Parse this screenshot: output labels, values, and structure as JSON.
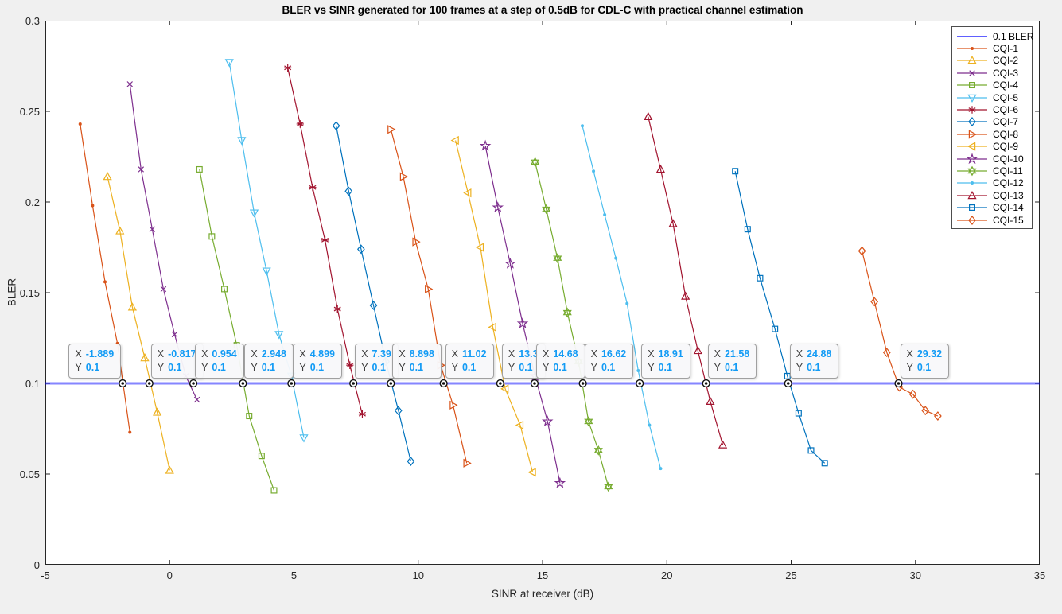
{
  "figure": {
    "background": "#f0f0f0",
    "plot_background": "#ffffff",
    "axis_color": "#262626"
  },
  "datatip": {
    "x_label": "X",
    "y_label": "Y",
    "value_color": "#129bf5",
    "key_color": "#3c3c3c"
  },
  "chart_data": {
    "type": "line",
    "title": "BLER vs SINR generated for 100 frames at a step of 0.5dB for CDL-C with practical channel estimation",
    "xlabel": "SINR at receiver (dB)",
    "ylabel": "BLER",
    "xlim": [
      -5,
      35
    ],
    "ylim": [
      0,
      0.3
    ],
    "xtick_labels": [
      "-5",
      "0",
      "5",
      "10",
      "15",
      "20",
      "25",
      "30",
      "35"
    ],
    "xtick_values": [
      -5,
      0,
      5,
      10,
      15,
      20,
      25,
      30,
      35
    ],
    "ytick_labels": [
      "0",
      "0.05",
      "0.1",
      "0.15",
      "0.2",
      "0.25",
      "0.3"
    ],
    "ytick_values": [
      0,
      0.05,
      0.1,
      0.15,
      0.2,
      0.25,
      0.3
    ],
    "grid": false,
    "legend_position": "top-right",
    "reference_line": {
      "label": "0.1 BLER",
      "y": 0.1,
      "color": "#0000FF"
    },
    "series": [
      {
        "name": "CQI-1",
        "color": "#D95319",
        "marker": "point",
        "x": [
          -3.6,
          -3.1,
          -2.6,
          -2.1,
          -1.6
        ],
        "y": [
          0.243,
          0.198,
          0.156,
          0.122,
          0.073
        ]
      },
      {
        "name": "CQI-2",
        "color": "#EDB120",
        "marker": "triangle-up",
        "x": [
          -2.5,
          -2.0,
          -1.5,
          -1.0,
          -0.5,
          0.0
        ],
        "y": [
          0.214,
          0.184,
          0.142,
          0.114,
          0.084,
          0.052
        ]
      },
      {
        "name": "CQI-3",
        "color": "#7E2F8E",
        "marker": "x",
        "x": [
          -1.6,
          -1.15,
          -0.7,
          -0.25,
          0.2,
          0.65,
          1.1
        ],
        "y": [
          0.265,
          0.218,
          0.185,
          0.152,
          0.127,
          0.104,
          0.091
        ]
      },
      {
        "name": "CQI-4",
        "color": "#77AC30",
        "marker": "square",
        "x": [
          1.2,
          1.7,
          2.2,
          2.7,
          3.2,
          3.7,
          4.2
        ],
        "y": [
          0.218,
          0.181,
          0.152,
          0.121,
          0.082,
          0.06,
          0.041
        ]
      },
      {
        "name": "CQI-5",
        "color": "#4DBEEE",
        "marker": "triangle-down",
        "x": [
          2.4,
          2.9,
          3.4,
          3.9,
          4.4,
          4.9,
          5.4
        ],
        "y": [
          0.277,
          0.234,
          0.194,
          0.162,
          0.127,
          0.104,
          0.07
        ]
      },
      {
        "name": "CQI-6",
        "color": "#A2142F",
        "marker": "asterisk",
        "x": [
          4.75,
          5.25,
          5.75,
          6.25,
          6.75,
          7.25,
          7.75
        ],
        "y": [
          0.274,
          0.243,
          0.208,
          0.179,
          0.141,
          0.11,
          0.083
        ]
      },
      {
        "name": "CQI-7",
        "color": "#0072BD",
        "marker": "diamond",
        "x": [
          6.7,
          7.2,
          7.7,
          8.2,
          8.7,
          9.2,
          9.7
        ],
        "y": [
          0.242,
          0.206,
          0.174,
          0.143,
          0.112,
          0.085,
          0.057
        ]
      },
      {
        "name": "CQI-8",
        "color": "#D95319",
        "marker": "triangle-right",
        "x": [
          8.9,
          9.4,
          9.9,
          10.4,
          10.9,
          11.4,
          11.95
        ],
        "y": [
          0.24,
          0.214,
          0.178,
          0.152,
          0.11,
          0.088,
          0.056
        ]
      },
      {
        "name": "CQI-9",
        "color": "#EDB120",
        "marker": "triangle-left",
        "x": [
          11.5,
          12.0,
          12.5,
          13.0,
          13.5,
          14.1,
          14.6
        ],
        "y": [
          0.234,
          0.205,
          0.175,
          0.131,
          0.097,
          0.077,
          0.051
        ]
      },
      {
        "name": "CQI-10",
        "color": "#7E2F8E",
        "marker": "pentagram",
        "x": [
          12.7,
          13.2,
          13.7,
          14.2,
          14.7,
          15.2,
          15.7
        ],
        "y": [
          0.231,
          0.197,
          0.166,
          0.133,
          0.104,
          0.079,
          0.045
        ]
      },
      {
        "name": "CQI-11",
        "color": "#77AC30",
        "marker": "hexagram",
        "x": [
          14.7,
          15.15,
          15.6,
          16.0,
          16.45,
          16.85,
          17.25,
          17.65
        ],
        "y": [
          0.222,
          0.196,
          0.169,
          0.139,
          0.112,
          0.079,
          0.063,
          0.043
        ]
      },
      {
        "name": "CQI-12",
        "color": "#4DBEEE",
        "marker": "point",
        "x": [
          16.6,
          17.05,
          17.5,
          17.95,
          18.4,
          18.85,
          19.3,
          19.75
        ],
        "y": [
          0.242,
          0.217,
          0.193,
          0.169,
          0.144,
          0.107,
          0.077,
          0.053
        ]
      },
      {
        "name": "CQI-13",
        "color": "#A2142F",
        "marker": "triangle-up",
        "x": [
          19.25,
          19.75,
          20.25,
          20.75,
          21.25,
          21.75,
          22.25
        ],
        "y": [
          0.247,
          0.218,
          0.188,
          0.148,
          0.118,
          0.09,
          0.066
        ]
      },
      {
        "name": "CQI-14",
        "color": "#0072BD",
        "marker": "square",
        "x": [
          22.75,
          23.25,
          23.75,
          24.35,
          24.85,
          25.3,
          25.8,
          26.35
        ],
        "y": [
          0.217,
          0.185,
          0.158,
          0.13,
          0.104,
          0.0835,
          0.063,
          0.056
        ]
      },
      {
        "name": "CQI-15",
        "color": "#D95319",
        "marker": "diamond",
        "x": [
          27.85,
          28.35,
          28.85,
          29.35,
          29.9,
          30.4,
          30.9
        ],
        "y": [
          0.173,
          0.145,
          0.117,
          0.098,
          0.094,
          0.085,
          0.082
        ]
      }
    ],
    "datatips": [
      {
        "x": "-1.889",
        "y": "0.1",
        "side": "left"
      },
      {
        "x": "-0.817",
        "y": "0.1",
        "side": "right"
      },
      {
        "x": "0.954",
        "y": "0.1",
        "side": "right"
      },
      {
        "x": "2.948",
        "y": "0.1",
        "side": "right"
      },
      {
        "x": "4.899",
        "y": "0.1",
        "side": "right"
      },
      {
        "x": "7.39",
        "y": "0.1",
        "side": "right"
      },
      {
        "x": "8.898",
        "y": "0.1",
        "side": "right"
      },
      {
        "x": "11.02",
        "y": "0.1",
        "side": "right"
      },
      {
        "x": "13.3",
        "y": "0.1",
        "side": "right"
      },
      {
        "x": "14.68",
        "y": "0.1",
        "side": "right"
      },
      {
        "x": "16.62",
        "y": "0.1",
        "side": "right"
      },
      {
        "x": "18.91",
        "y": "0.1",
        "side": "right"
      },
      {
        "x": "21.58",
        "y": "0.1",
        "side": "right"
      },
      {
        "x": "24.88",
        "y": "0.1",
        "side": "right"
      },
      {
        "x": "29.32",
        "y": "0.1",
        "side": "right"
      }
    ]
  }
}
